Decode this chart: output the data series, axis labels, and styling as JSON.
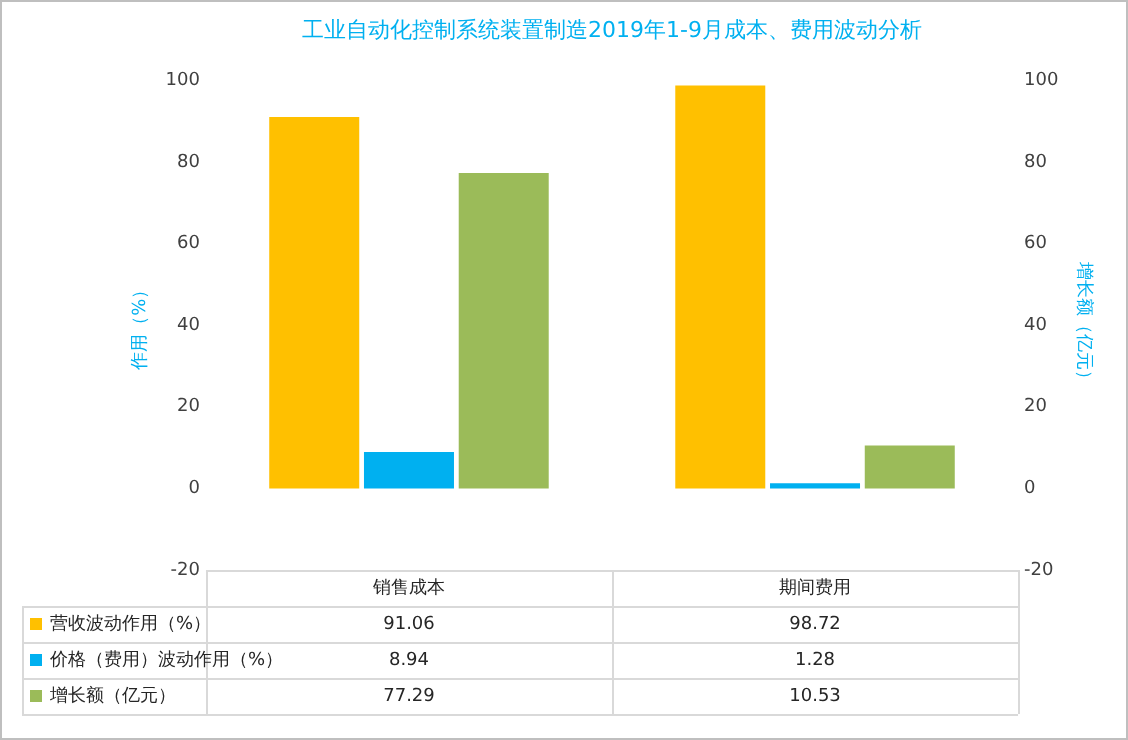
{
  "chart_data": {
    "type": "bar",
    "title": "工业自动化控制系统装置制造2019年1-9月成本、费用波动分析",
    "ylabel": "作用（%）",
    "y2label": "增长额（亿元）",
    "categories": [
      "销售成本",
      "期间费用"
    ],
    "series": [
      {
        "name": "营收波动作用（%）",
        "color": "#ffc000",
        "values": [
          91.06,
          98.72
        ]
      },
      {
        "name": "价格（费用）波动作用（%）",
        "color": "#00b0f0",
        "values": [
          8.94,
          1.28
        ]
      },
      {
        "name": "增长额（亿元）",
        "color": "#9bbb59",
        "values": [
          77.29,
          10.53
        ],
        "axis": "y2"
      }
    ],
    "ylim": [
      -20,
      100
    ],
    "yticks": [
      -20,
      0,
      20,
      40,
      60,
      80,
      100
    ],
    "y2lim": [
      -20,
      100
    ],
    "y2ticks": [
      -20,
      0,
      20,
      40,
      60,
      80,
      100
    ],
    "data_labels": true,
    "legend": "bottom",
    "grid": false
  }
}
